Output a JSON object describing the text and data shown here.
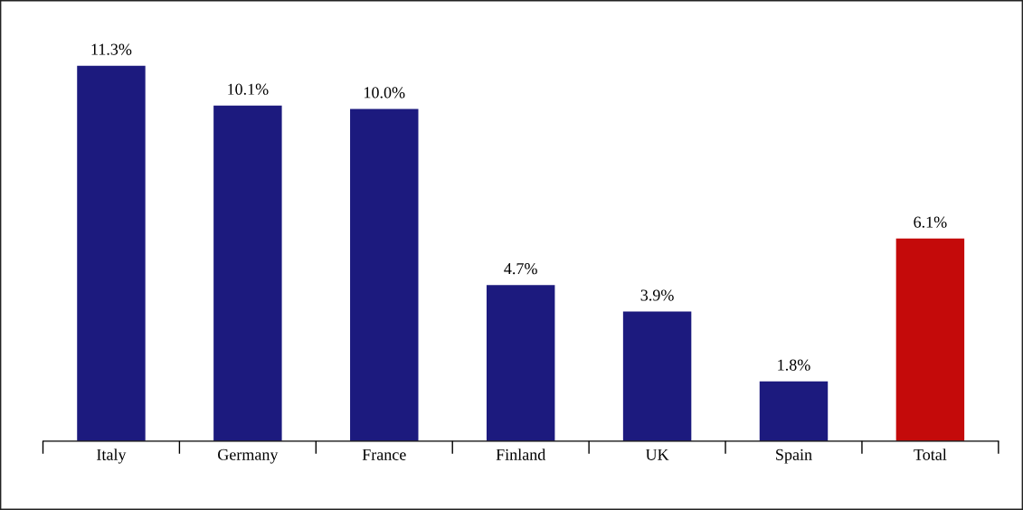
{
  "chart_data": {
    "type": "bar",
    "categories": [
      "Italy",
      "Germany",
      "France",
      "Finland",
      "UK",
      "Spain",
      "Total"
    ],
    "values": [
      11.3,
      10.1,
      10.0,
      4.7,
      3.9,
      1.8,
      6.1
    ],
    "colors": [
      "#1c1a7e",
      "#1c1a7e",
      "#1c1a7e",
      "#1c1a7e",
      "#1c1a7e",
      "#1c1a7e",
      "#c40a0a"
    ],
    "value_labels": [
      "11.3%",
      "10.1%",
      "10.0%",
      "4.7%",
      "3.9%",
      "1.8%",
      "6.1%"
    ],
    "grid": false,
    "legend": false
  }
}
